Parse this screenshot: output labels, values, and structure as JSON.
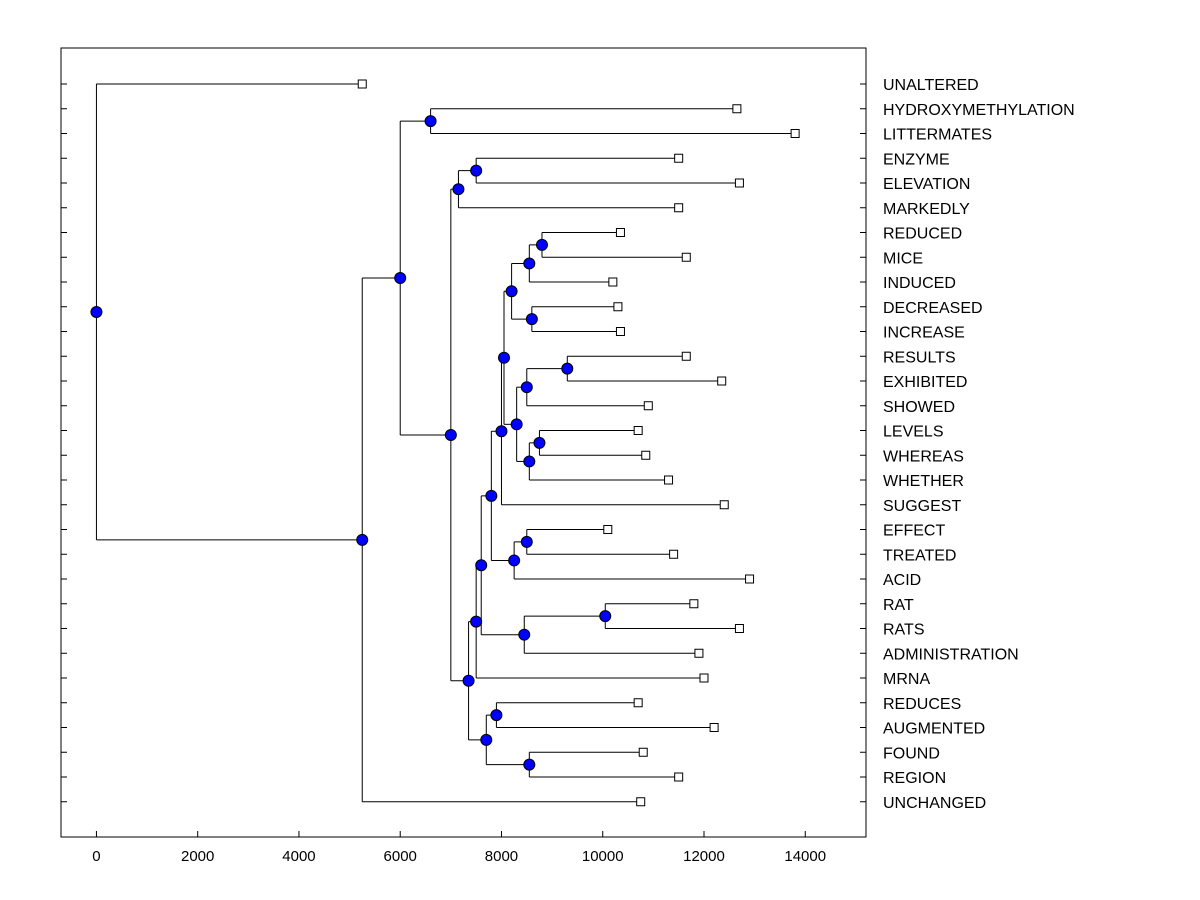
{
  "chart_data": {
    "type": "dendrogram",
    "title": "",
    "xlabel": "",
    "ylabel": "",
    "xlim": [
      -700,
      15200
    ],
    "x_ticks": [
      0,
      2000,
      4000,
      6000,
      8000,
      10000,
      12000,
      14000
    ],
    "x_tick_labels": [
      "0",
      "2000",
      "4000",
      "6000",
      "8000",
      "10000",
      "12000",
      "14000"
    ],
    "leaves": [
      {
        "label": "UNALTERED",
        "x": 5250
      },
      {
        "label": "HYDROXYMETHYLATION",
        "x": 12650
      },
      {
        "label": "LITTERMATES",
        "x": 13800
      },
      {
        "label": "ENZYME",
        "x": 11500
      },
      {
        "label": "ELEVATION",
        "x": 12700
      },
      {
        "label": "MARKEDLY",
        "x": 11500
      },
      {
        "label": "REDUCED",
        "x": 10350
      },
      {
        "label": "MICE",
        "x": 11650
      },
      {
        "label": "INDUCED",
        "x": 10200
      },
      {
        "label": "DECREASED",
        "x": 10300
      },
      {
        "label": "INCREASE",
        "x": 10350
      },
      {
        "label": "RESULTS",
        "x": 11650
      },
      {
        "label": "EXHIBITED",
        "x": 12350
      },
      {
        "label": "SHOWED",
        "x": 10900
      },
      {
        "label": "LEVELS",
        "x": 10700
      },
      {
        "label": "WHEREAS",
        "x": 10850
      },
      {
        "label": "WHETHER",
        "x": 11300
      },
      {
        "label": "SUGGEST",
        "x": 12400
      },
      {
        "label": "EFFECT",
        "x": 10100
      },
      {
        "label": "TREATED",
        "x": 11400
      },
      {
        "label": "ACID",
        "x": 12900
      },
      {
        "label": "RAT",
        "x": 11800
      },
      {
        "label": "RATS",
        "x": 12700
      },
      {
        "label": "ADMINISTRATION",
        "x": 11900
      },
      {
        "label": "MRNA",
        "x": 12000
      },
      {
        "label": "REDUCES",
        "x": 10700
      },
      {
        "label": "AUGMENTED",
        "x": 12200
      },
      {
        "label": "FOUND",
        "x": 10800
      },
      {
        "label": "REGION",
        "x": 11500
      },
      {
        "label": "UNCHANGED",
        "x": 10750
      }
    ],
    "nodes": [
      {
        "id": "n0",
        "x": 0,
        "children": [
          "l0",
          "n1"
        ]
      },
      {
        "id": "n1",
        "x": 5250,
        "children": [
          "n2",
          "l29"
        ]
      },
      {
        "id": "n2",
        "x": 6000,
        "children": [
          "n3",
          "n4"
        ]
      },
      {
        "id": "n3",
        "x": 6600,
        "children": [
          "l1",
          "l2"
        ]
      },
      {
        "id": "n4",
        "x": 7000,
        "children": [
          "n5",
          "n21"
        ]
      },
      {
        "id": "n5",
        "x": 7150,
        "children": [
          "n6",
          "l5"
        ]
      },
      {
        "id": "n6",
        "x": 7500,
        "children": [
          "l3",
          "l4"
        ]
      },
      {
        "id": "n21",
        "x": 7350,
        "children": [
          "n20",
          "n22"
        ]
      },
      {
        "id": "n20",
        "x": 7500,
        "children": [
          "n19",
          "l24"
        ]
      },
      {
        "id": "n19",
        "x": 7600,
        "children": [
          "n18",
          "n23"
        ]
      },
      {
        "id": "n18",
        "x": 7800,
        "children": [
          "n17",
          "n24"
        ]
      },
      {
        "id": "n17",
        "x": 8000,
        "children": [
          "n16",
          "l17"
        ]
      },
      {
        "id": "n16",
        "x": 8050,
        "children": [
          "n11",
          "n15"
        ]
      },
      {
        "id": "n11",
        "x": 8200,
        "children": [
          "n9",
          "n10"
        ]
      },
      {
        "id": "n9",
        "x": 8550,
        "children": [
          "n8",
          "l8"
        ]
      },
      {
        "id": "n8",
        "x": 8800,
        "children": [
          "l6",
          "l7"
        ]
      },
      {
        "id": "n10",
        "x": 8600,
        "children": [
          "l9",
          "l10"
        ]
      },
      {
        "id": "n15",
        "x": 8300,
        "children": [
          "n13",
          "n14"
        ]
      },
      {
        "id": "n13",
        "x": 8500,
        "children": [
          "n12",
          "l13"
        ]
      },
      {
        "id": "n12",
        "x": 9300,
        "children": [
          "l11",
          "l12"
        ]
      },
      {
        "id": "n14",
        "x": 8550,
        "children": [
          "n7",
          "l16"
        ]
      },
      {
        "id": "n7",
        "x": 8750,
        "children": [
          "l14",
          "l15"
        ]
      },
      {
        "id": "n24",
        "x": 8250,
        "children": [
          "n25",
          "l20"
        ]
      },
      {
        "id": "n25",
        "x": 8500,
        "children": [
          "l18",
          "l19"
        ]
      },
      {
        "id": "n23",
        "x": 8450,
        "children": [
          "n26",
          "l23"
        ]
      },
      {
        "id": "n26",
        "x": 10050,
        "children": [
          "l21",
          "l22"
        ]
      },
      {
        "id": "n22",
        "x": 7700,
        "children": [
          "n27",
          "n28"
        ]
      },
      {
        "id": "n27",
        "x": 7900,
        "children": [
          "l25",
          "l26"
        ]
      },
      {
        "id": "n28",
        "x": 8550,
        "children": [
          "l27",
          "l28"
        ]
      }
    ],
    "grid": false,
    "colors": {
      "node_fill": "#0000ff",
      "node_stroke": "#000000",
      "line": "#000000",
      "leaf_fill": "#ffffff"
    }
  }
}
